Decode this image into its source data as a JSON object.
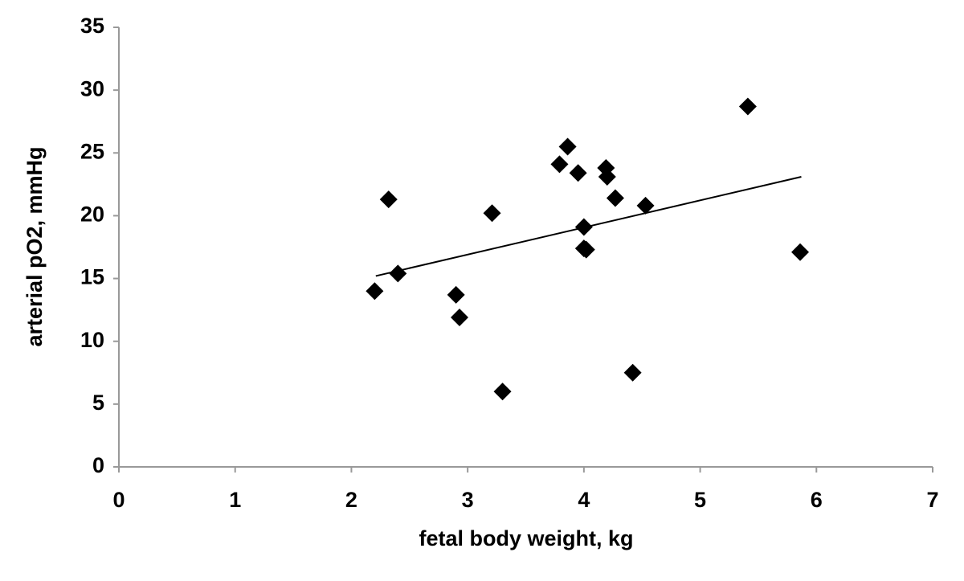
{
  "chart_data": {
    "type": "scatter",
    "x_label": "fetal body weight, kg",
    "y_label": "arterial pO2, mmHg",
    "series": [
      {
        "color": "#000000",
        "x": [
          2.2,
          2.32,
          2.4,
          2.9,
          2.93,
          3.21,
          3.3,
          3.79,
          3.86,
          3.95,
          4.0,
          4.0,
          4.02,
          4.19,
          4.2,
          4.27,
          4.42,
          4.53,
          5.41,
          5.86
        ],
        "values": [
          14.0,
          21.3,
          15.4,
          13.7,
          11.9,
          20.2,
          6.0,
          24.1,
          25.5,
          23.4,
          19.1,
          17.4,
          17.3,
          23.8,
          23.1,
          21.4,
          7.5,
          20.8,
          28.7,
          17.1
        ]
      }
    ],
    "trendline": {
      "color": "#000000",
      "x": [
        2.21,
        5.87
      ],
      "y": [
        15.2,
        23.1
      ]
    },
    "xlim": [
      0,
      7
    ],
    "xticks": [
      0,
      1,
      2,
      3,
      4,
      5,
      6,
      7
    ],
    "ylim": [
      0,
      35
    ],
    "yticks": [
      0,
      5,
      10,
      15,
      20,
      25,
      30,
      35
    ],
    "grid": false
  }
}
